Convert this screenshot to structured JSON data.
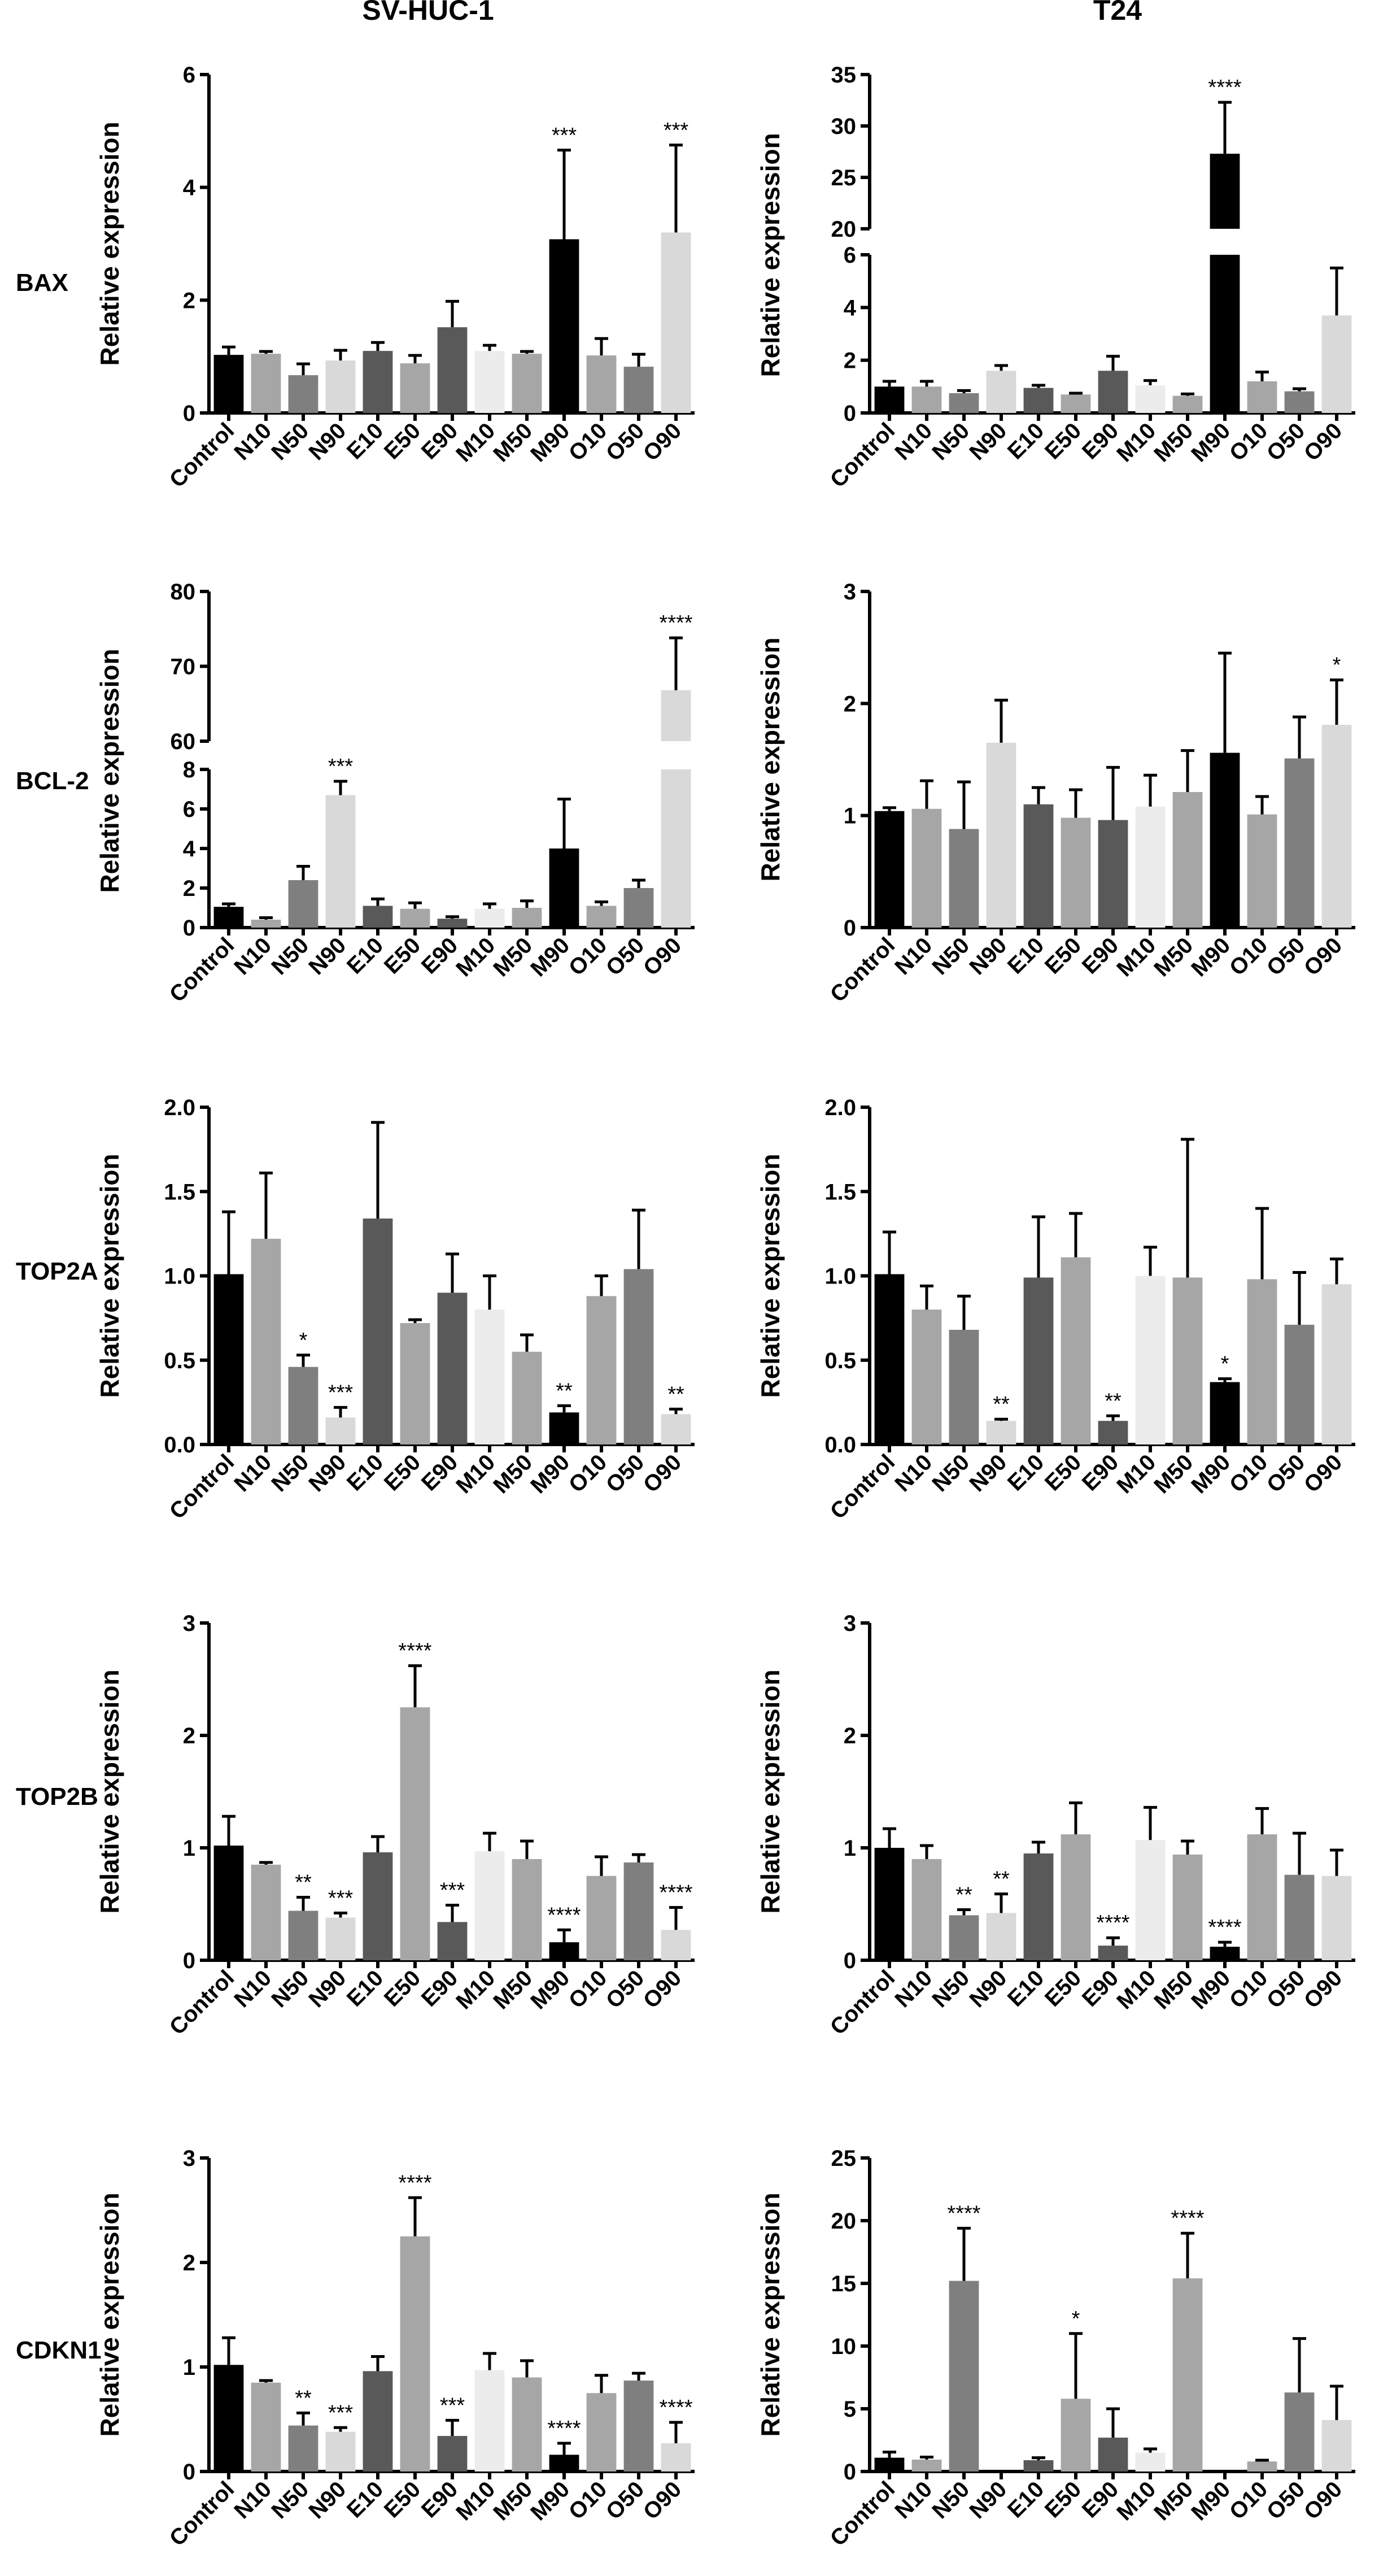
{
  "column_titles": [
    "SV-HUC-1",
    "T24"
  ],
  "row_labels": [
    "BAX",
    "BCL-2",
    "TOP2A",
    "TOP2B",
    "CDKN1"
  ],
  "palette": {
    "Control": "#000000",
    "N10": "#a6a6a6",
    "N50": "#7f7f7f",
    "N90": "#d9d9d9",
    "E10": "#595959",
    "E50": "#a6a6a6",
    "E90": "#595959",
    "M10": "#ececec",
    "M50": "#a6a6a6",
    "M90": "#000000",
    "O10": "#a6a6a6",
    "O50": "#7f7f7f",
    "O90": "#d9d9d9"
  },
  "chart_data": [
    {
      "type": "bar",
      "gene": "BAX",
      "cell_line": "SV-HUC-1",
      "ylabel": "Relative expression",
      "categories": [
        "Control",
        "N10",
        "N50",
        "N90",
        "E10",
        "E50",
        "E90",
        "M10",
        "M50",
        "M90",
        "O10",
        "O50",
        "O90"
      ],
      "values": [
        1.03,
        1.05,
        0.67,
        0.93,
        1.1,
        0.88,
        1.52,
        1.1,
        1.05,
        3.08,
        1.02,
        0.82,
        3.2
      ],
      "errors": [
        0.14,
        0.04,
        0.2,
        0.18,
        0.15,
        0.14,
        0.46,
        0.1,
        0.04,
        1.58,
        0.3,
        0.22,
        1.55
      ],
      "significance": [
        "",
        "",
        "",
        "",
        "",
        "",
        "",
        "",
        "",
        "***",
        "",
        "",
        "***"
      ],
      "ylim": [
        0,
        6
      ],
      "yticks": [
        0,
        2,
        4,
        6
      ],
      "ytick_labels": [
        "0",
        "2",
        "4",
        "6"
      ]
    },
    {
      "type": "bar",
      "gene": "BAX",
      "cell_line": "T24",
      "ylabel": "Relative expression",
      "categories": [
        "Control",
        "N10",
        "N50",
        "N90",
        "E10",
        "E50",
        "E90",
        "M10",
        "M50",
        "M90",
        "O10",
        "O50",
        "O90"
      ],
      "values": [
        1.0,
        1.0,
        0.75,
        1.6,
        0.95,
        0.7,
        1.6,
        1.05,
        0.65,
        27.3,
        1.2,
        0.82,
        3.7
      ],
      "errors": [
        0.2,
        0.2,
        0.1,
        0.2,
        0.1,
        0.05,
        0.55,
        0.18,
        0.07,
        5.0,
        0.35,
        0.1,
        1.8
      ],
      "significance": [
        "",
        "",
        "",
        "",
        "",
        "",
        "",
        "",
        "",
        "****",
        "",
        "",
        ""
      ],
      "ylim": [
        0,
        35
      ],
      "axis_break": {
        "lower": [
          0,
          6
        ],
        "upper": [
          20,
          35
        ]
      },
      "yticks": [
        0,
        2,
        4,
        6,
        20,
        25,
        30,
        35
      ],
      "ytick_labels": [
        "0",
        "2",
        "4",
        "6",
        "20",
        "25",
        "30",
        "35"
      ]
    },
    {
      "type": "bar",
      "gene": "BCL-2",
      "cell_line": "SV-HUC-1",
      "ylabel": "Relative expression",
      "categories": [
        "Control",
        "N10",
        "N50",
        "N90",
        "E10",
        "E50",
        "E90",
        "M10",
        "M50",
        "M90",
        "O10",
        "O50",
        "O90"
      ],
      "values": [
        1.05,
        0.4,
        2.4,
        6.7,
        1.1,
        0.95,
        0.45,
        0.95,
        1.0,
        4.0,
        1.1,
        2.0,
        66.8
      ],
      "errors": [
        0.15,
        0.1,
        0.7,
        0.7,
        0.35,
        0.3,
        0.1,
        0.25,
        0.35,
        2.5,
        0.2,
        0.4,
        7.0
      ],
      "significance": [
        "",
        "",
        "",
        "***",
        "",
        "",
        "",
        "",
        "",
        "",
        "",
        "",
        "****"
      ],
      "ylim": [
        0,
        80
      ],
      "axis_break": {
        "lower": [
          0,
          8
        ],
        "upper": [
          60,
          80
        ]
      },
      "yticks": [
        0,
        2,
        4,
        6,
        8,
        60,
        70,
        80
      ],
      "ytick_labels": [
        "0",
        "2",
        "4",
        "6",
        "8",
        "60",
        "70",
        "80"
      ]
    },
    {
      "type": "bar",
      "gene": "BCL-2",
      "cell_line": "T24",
      "ylabel": "Relative expression",
      "categories": [
        "Control",
        "N10",
        "N50",
        "N90",
        "E10",
        "E50",
        "E90",
        "M10",
        "M50",
        "M90",
        "O10",
        "O50",
        "O90"
      ],
      "values": [
        1.04,
        1.06,
        0.88,
        1.65,
        1.1,
        0.98,
        0.96,
        1.08,
        1.21,
        1.56,
        1.01,
        1.51,
        1.81
      ],
      "errors": [
        0.03,
        0.25,
        0.42,
        0.38,
        0.15,
        0.25,
        0.47,
        0.28,
        0.37,
        0.89,
        0.16,
        0.37,
        0.4
      ],
      "significance": [
        "",
        "",
        "",
        "",
        "",
        "",
        "",
        "",
        "",
        "",
        "",
        "",
        "*"
      ],
      "ylim": [
        0,
        3
      ],
      "yticks": [
        0,
        1,
        2,
        3
      ],
      "ytick_labels": [
        "0",
        "1",
        "2",
        "3"
      ]
    },
    {
      "type": "bar",
      "gene": "TOP2A",
      "cell_line": "SV-HUC-1",
      "ylabel": "Relative expression",
      "categories": [
        "Control",
        "N10",
        "N50",
        "N90",
        "E10",
        "E50",
        "E90",
        "M10",
        "M50",
        "M90",
        "O10",
        "O50",
        "O90"
      ],
      "values": [
        1.01,
        1.22,
        0.46,
        0.16,
        1.34,
        0.72,
        0.9,
        0.8,
        0.55,
        0.19,
        0.88,
        1.04,
        0.18
      ],
      "errors": [
        0.37,
        0.39,
        0.07,
        0.06,
        0.57,
        0.02,
        0.23,
        0.2,
        0.1,
        0.04,
        0.12,
        0.35,
        0.03
      ],
      "significance": [
        "",
        "",
        "*",
        "***",
        "",
        "",
        "",
        "",
        "",
        "**",
        "",
        "",
        "**"
      ],
      "ylim": [
        0,
        2.0
      ],
      "yticks": [
        0,
        0.5,
        1.0,
        1.5,
        2.0
      ],
      "ytick_labels": [
        "0.0",
        "0.5",
        "1.0",
        "1.5",
        "2.0"
      ]
    },
    {
      "type": "bar",
      "gene": "TOP2A",
      "cell_line": "T24",
      "ylabel": "Relative expression",
      "categories": [
        "Control",
        "N10",
        "N50",
        "N90",
        "E10",
        "E50",
        "E90",
        "M10",
        "M50",
        "M90",
        "O10",
        "O50",
        "O90"
      ],
      "values": [
        1.01,
        0.8,
        0.68,
        0.14,
        0.99,
        1.11,
        0.14,
        1.0,
        0.99,
        0.37,
        0.98,
        0.71,
        0.95
      ],
      "errors": [
        0.25,
        0.14,
        0.2,
        0.01,
        0.36,
        0.26,
        0.03,
        0.17,
        0.82,
        0.02,
        0.42,
        0.31,
        0.15
      ],
      "significance": [
        "",
        "",
        "",
        "**",
        "",
        "",
        "**",
        "",
        "",
        "*",
        "",
        "",
        ""
      ],
      "ylim": [
        0,
        2.0
      ],
      "yticks": [
        0,
        0.5,
        1.0,
        1.5,
        2.0
      ],
      "ytick_labels": [
        "0.0",
        "0.5",
        "1.0",
        "1.5",
        "2.0"
      ]
    },
    {
      "type": "bar",
      "gene": "TOP2B",
      "cell_line": "SV-HUC-1",
      "ylabel": "Relative expression",
      "categories": [
        "Control",
        "N10",
        "N50",
        "N90",
        "E10",
        "E50",
        "E90",
        "M10",
        "M50",
        "M90",
        "O10",
        "O50",
        "O90"
      ],
      "values": [
        1.02,
        0.85,
        0.44,
        0.38,
        0.96,
        2.25,
        0.34,
        0.97,
        0.9,
        0.16,
        0.75,
        0.87,
        0.27
      ],
      "errors": [
        0.26,
        0.02,
        0.12,
        0.04,
        0.14,
        0.37,
        0.15,
        0.16,
        0.16,
        0.11,
        0.17,
        0.07,
        0.2
      ],
      "significance": [
        "",
        "",
        "**",
        "***",
        "",
        "****",
        "***",
        "",
        "",
        "****",
        "",
        "",
        "****"
      ],
      "ylim": [
        0,
        3
      ],
      "yticks": [
        0,
        1,
        2,
        3
      ],
      "ytick_labels": [
        "0",
        "1",
        "2",
        "3"
      ]
    },
    {
      "type": "bar",
      "gene": "TOP2B",
      "cell_line": "T24",
      "ylabel": "Relative expression",
      "categories": [
        "Control",
        "N10",
        "N50",
        "N90",
        "E10",
        "E50",
        "E90",
        "M10",
        "M50",
        "M90",
        "O10",
        "O50",
        "O90"
      ],
      "values": [
        1.0,
        0.9,
        0.4,
        0.42,
        0.95,
        1.12,
        0.13,
        1.07,
        0.94,
        0.12,
        1.12,
        0.76,
        0.75
      ],
      "errors": [
        0.17,
        0.12,
        0.05,
        0.17,
        0.1,
        0.28,
        0.07,
        0.29,
        0.12,
        0.04,
        0.23,
        0.37,
        0.23
      ],
      "significance": [
        "",
        "",
        "**",
        "**",
        "",
        "",
        "****",
        "",
        "",
        "****",
        "",
        "",
        ""
      ],
      "ylim": [
        0,
        3
      ],
      "yticks": [
        0,
        1,
        2,
        3
      ],
      "ytick_labels": [
        "0",
        "1",
        "2",
        "3"
      ]
    },
    {
      "type": "bar",
      "gene": "CDKN1",
      "cell_line": "SV-HUC-1",
      "ylabel": "Relative expression",
      "categories": [
        "Control",
        "N10",
        "N50",
        "N90",
        "E10",
        "E50",
        "E90",
        "M10",
        "M50",
        "M90",
        "O10",
        "O50",
        "O90"
      ],
      "values": [
        1.02,
        0.85,
        0.44,
        0.38,
        0.96,
        2.25,
        0.34,
        0.97,
        0.9,
        0.16,
        0.75,
        0.87,
        0.27
      ],
      "errors": [
        0.26,
        0.02,
        0.12,
        0.04,
        0.14,
        0.37,
        0.15,
        0.16,
        0.16,
        0.11,
        0.17,
        0.07,
        0.2
      ],
      "significance": [
        "",
        "",
        "**",
        "***",
        "",
        "****",
        "***",
        "",
        "",
        "****",
        "",
        "",
        "****"
      ],
      "ylim": [
        0,
        3
      ],
      "yticks": [
        0,
        1,
        2,
        3
      ],
      "ytick_labels": [
        "0",
        "1",
        "2",
        "3"
      ]
    },
    {
      "type": "bar",
      "gene": "CDKN1",
      "cell_line": "T24",
      "ylabel": "Relative expression",
      "categories": [
        "Control",
        "N10",
        "N50",
        "N90",
        "E10",
        "E50",
        "E90",
        "M10",
        "M50",
        "M90",
        "O10",
        "O50",
        "O90"
      ],
      "values": [
        1.1,
        0.95,
        15.2,
        0.0,
        0.9,
        5.8,
        2.7,
        1.5,
        15.4,
        0.0,
        0.8,
        6.3,
        4.1
      ],
      "errors": [
        0.45,
        0.2,
        4.2,
        0.0,
        0.2,
        5.2,
        2.3,
        0.3,
        3.6,
        0.0,
        0.1,
        4.3,
        2.7
      ],
      "significance": [
        "",
        "",
        "****",
        "",
        "",
        "*",
        "",
        "",
        "****",
        "",
        "",
        "",
        ""
      ],
      "ylim": [
        0,
        25
      ],
      "yticks": [
        0,
        5,
        10,
        15,
        20,
        25
      ],
      "ytick_labels": [
        "0",
        "5",
        "10",
        "15",
        "20",
        "25"
      ]
    }
  ]
}
